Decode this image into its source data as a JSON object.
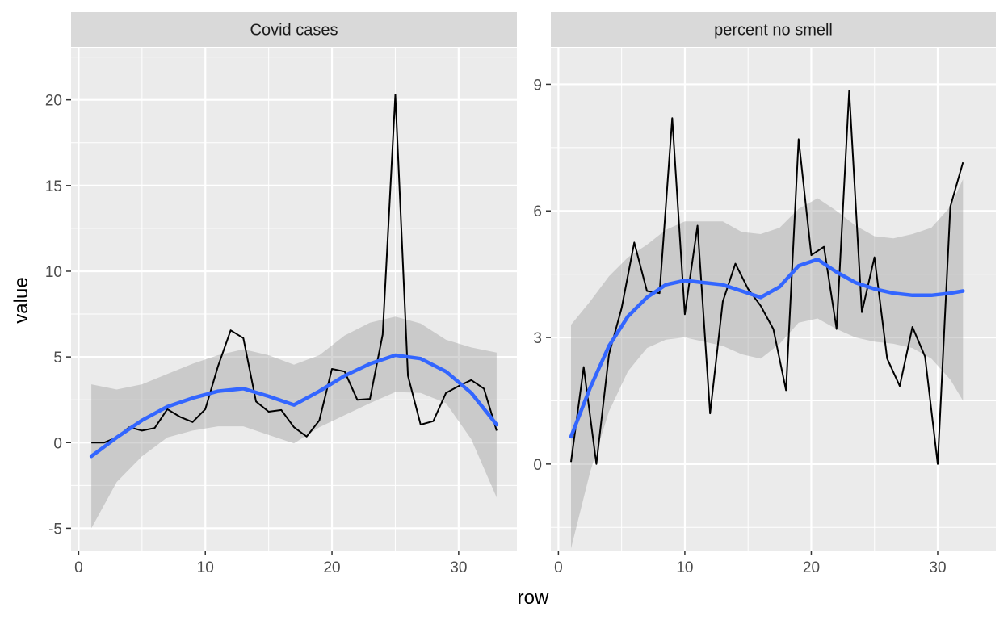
{
  "chart_data": {
    "type": "line",
    "facet_layout": "side-by-side, independent y axes",
    "xlabel": "row",
    "ylabel": "value",
    "panels": [
      {
        "title": "Covid cases",
        "xlim": [
          -0.6,
          34.6
        ],
        "ylim": [
          -6.3,
          23.0
        ],
        "xticks": [
          0,
          10,
          20,
          30
        ],
        "yticks": [
          -5,
          0,
          5,
          10,
          15,
          20
        ],
        "ytick_labels": [
          "-5",
          "0",
          "5",
          "10",
          "15",
          "20"
        ],
        "series": [
          {
            "kind": "line",
            "x": [
              1,
              2,
              3,
              4,
              5,
              6,
              7,
              8,
              9,
              10,
              11,
              12,
              13,
              14,
              15,
              16,
              17,
              18,
              19,
              20,
              21,
              22,
              23,
              24,
              25,
              26,
              27,
              28,
              29,
              30,
              31,
              32,
              33
            ],
            "y": [
              0,
              0,
              0.3,
              0.9,
              0.7,
              0.85,
              1.95,
              1.5,
              1.2,
              1.95,
              4.45,
              6.55,
              6.1,
              2.4,
              1.8,
              1.9,
              0.9,
              0.35,
              1.3,
              4.3,
              4.15,
              2.5,
              2.55,
              6.3,
              20.3,
              3.9,
              1.05,
              1.25,
              2.9,
              3.3,
              3.65,
              3.15,
              0.7
            ]
          },
          {
            "kind": "smooth",
            "x": [
              1,
              3,
              5,
              7,
              9,
              11,
              13,
              15,
              17,
              19,
              21,
              23,
              25,
              27,
              29,
              31,
              33
            ],
            "y": [
              -0.8,
              0.3,
              1.3,
              2.1,
              2.6,
              3.0,
              3.15,
              2.7,
              2.2,
              3.0,
              3.9,
              4.6,
              5.1,
              4.9,
              4.15,
              2.9,
              1.05
            ],
            "band_lower": [
              -5.0,
              -2.3,
              -0.8,
              0.3,
              0.7,
              0.95,
              0.95,
              0.45,
              -0.05,
              0.9,
              1.6,
              2.3,
              2.95,
              2.9,
              2.3,
              0.2,
              -3.2
            ],
            "band_upper": [
              3.4,
              3.1,
              3.4,
              4.0,
              4.6,
              5.1,
              5.45,
              5.1,
              4.55,
              5.1,
              6.25,
              7.0,
              7.35,
              6.95,
              6.0,
              5.55,
              5.25
            ]
          }
        ]
      },
      {
        "title": "percent no smell",
        "xlim": [
          -0.6,
          34.6
        ],
        "ylim": [
          -2.05,
          9.85
        ],
        "xticks": [
          0,
          10,
          20,
          30
        ],
        "yticks": [
          0,
          3,
          6,
          9
        ],
        "ytick_labels": [
          "0",
          "3",
          "6",
          "9"
        ],
        "series": [
          {
            "kind": "line",
            "x": [
              1,
              2,
              3,
              4,
              5,
              6,
              7,
              8,
              9,
              10,
              11,
              12,
              13,
              14,
              15,
              16,
              17,
              18,
              19,
              20,
              21,
              22,
              23,
              24,
              25,
              26,
              27,
              28,
              29,
              30,
              31,
              32
            ],
            "y": [
              0.05,
              2.3,
              0,
              2.6,
              3.7,
              5.25,
              4.1,
              4.05,
              8.2,
              3.55,
              5.65,
              1.2,
              3.85,
              4.75,
              4.15,
              3.75,
              3.2,
              1.75,
              7.7,
              4.95,
              5.15,
              3.2,
              8.85,
              3.6,
              4.9,
              2.5,
              1.85,
              3.25,
              2.55,
              0,
              6.1,
              7.15
            ]
          },
          {
            "kind": "smooth",
            "x": [
              1,
              2.5,
              4,
              5.5,
              7,
              8.5,
              10,
              11.5,
              13,
              14.5,
              16,
              17.5,
              19,
              20.5,
              22,
              23.5,
              25,
              26.5,
              28,
              29.5,
              31,
              32
            ],
            "y": [
              0.65,
              1.8,
              2.8,
              3.5,
              3.95,
              4.25,
              4.35,
              4.3,
              4.25,
              4.1,
              3.95,
              4.2,
              4.7,
              4.85,
              4.55,
              4.3,
              4.15,
              4.05,
              4.0,
              4.0,
              4.05,
              4.1
            ],
            "band_lower": [
              -2.0,
              -0.2,
              1.25,
              2.2,
              2.75,
              2.95,
              3.0,
              2.9,
              2.8,
              2.6,
              2.5,
              2.85,
              3.35,
              3.45,
              3.2,
              3.0,
              2.9,
              2.85,
              2.75,
              2.5,
              2.0,
              1.5
            ],
            "band_upper": [
              3.3,
              3.85,
              4.45,
              4.9,
              5.2,
              5.55,
              5.75,
              5.75,
              5.75,
              5.5,
              5.45,
              5.6,
              6.05,
              6.3,
              6.0,
              5.65,
              5.4,
              5.35,
              5.45,
              5.6,
              6.1,
              6.75
            ]
          }
        ]
      }
    ],
    "colors": {
      "panel_bg": "#ebebeb",
      "strip_bg": "#d9d9d9",
      "grid": "#ffffff",
      "line": "#000000",
      "smooth": "#3366ff",
      "band": "#999999"
    }
  }
}
